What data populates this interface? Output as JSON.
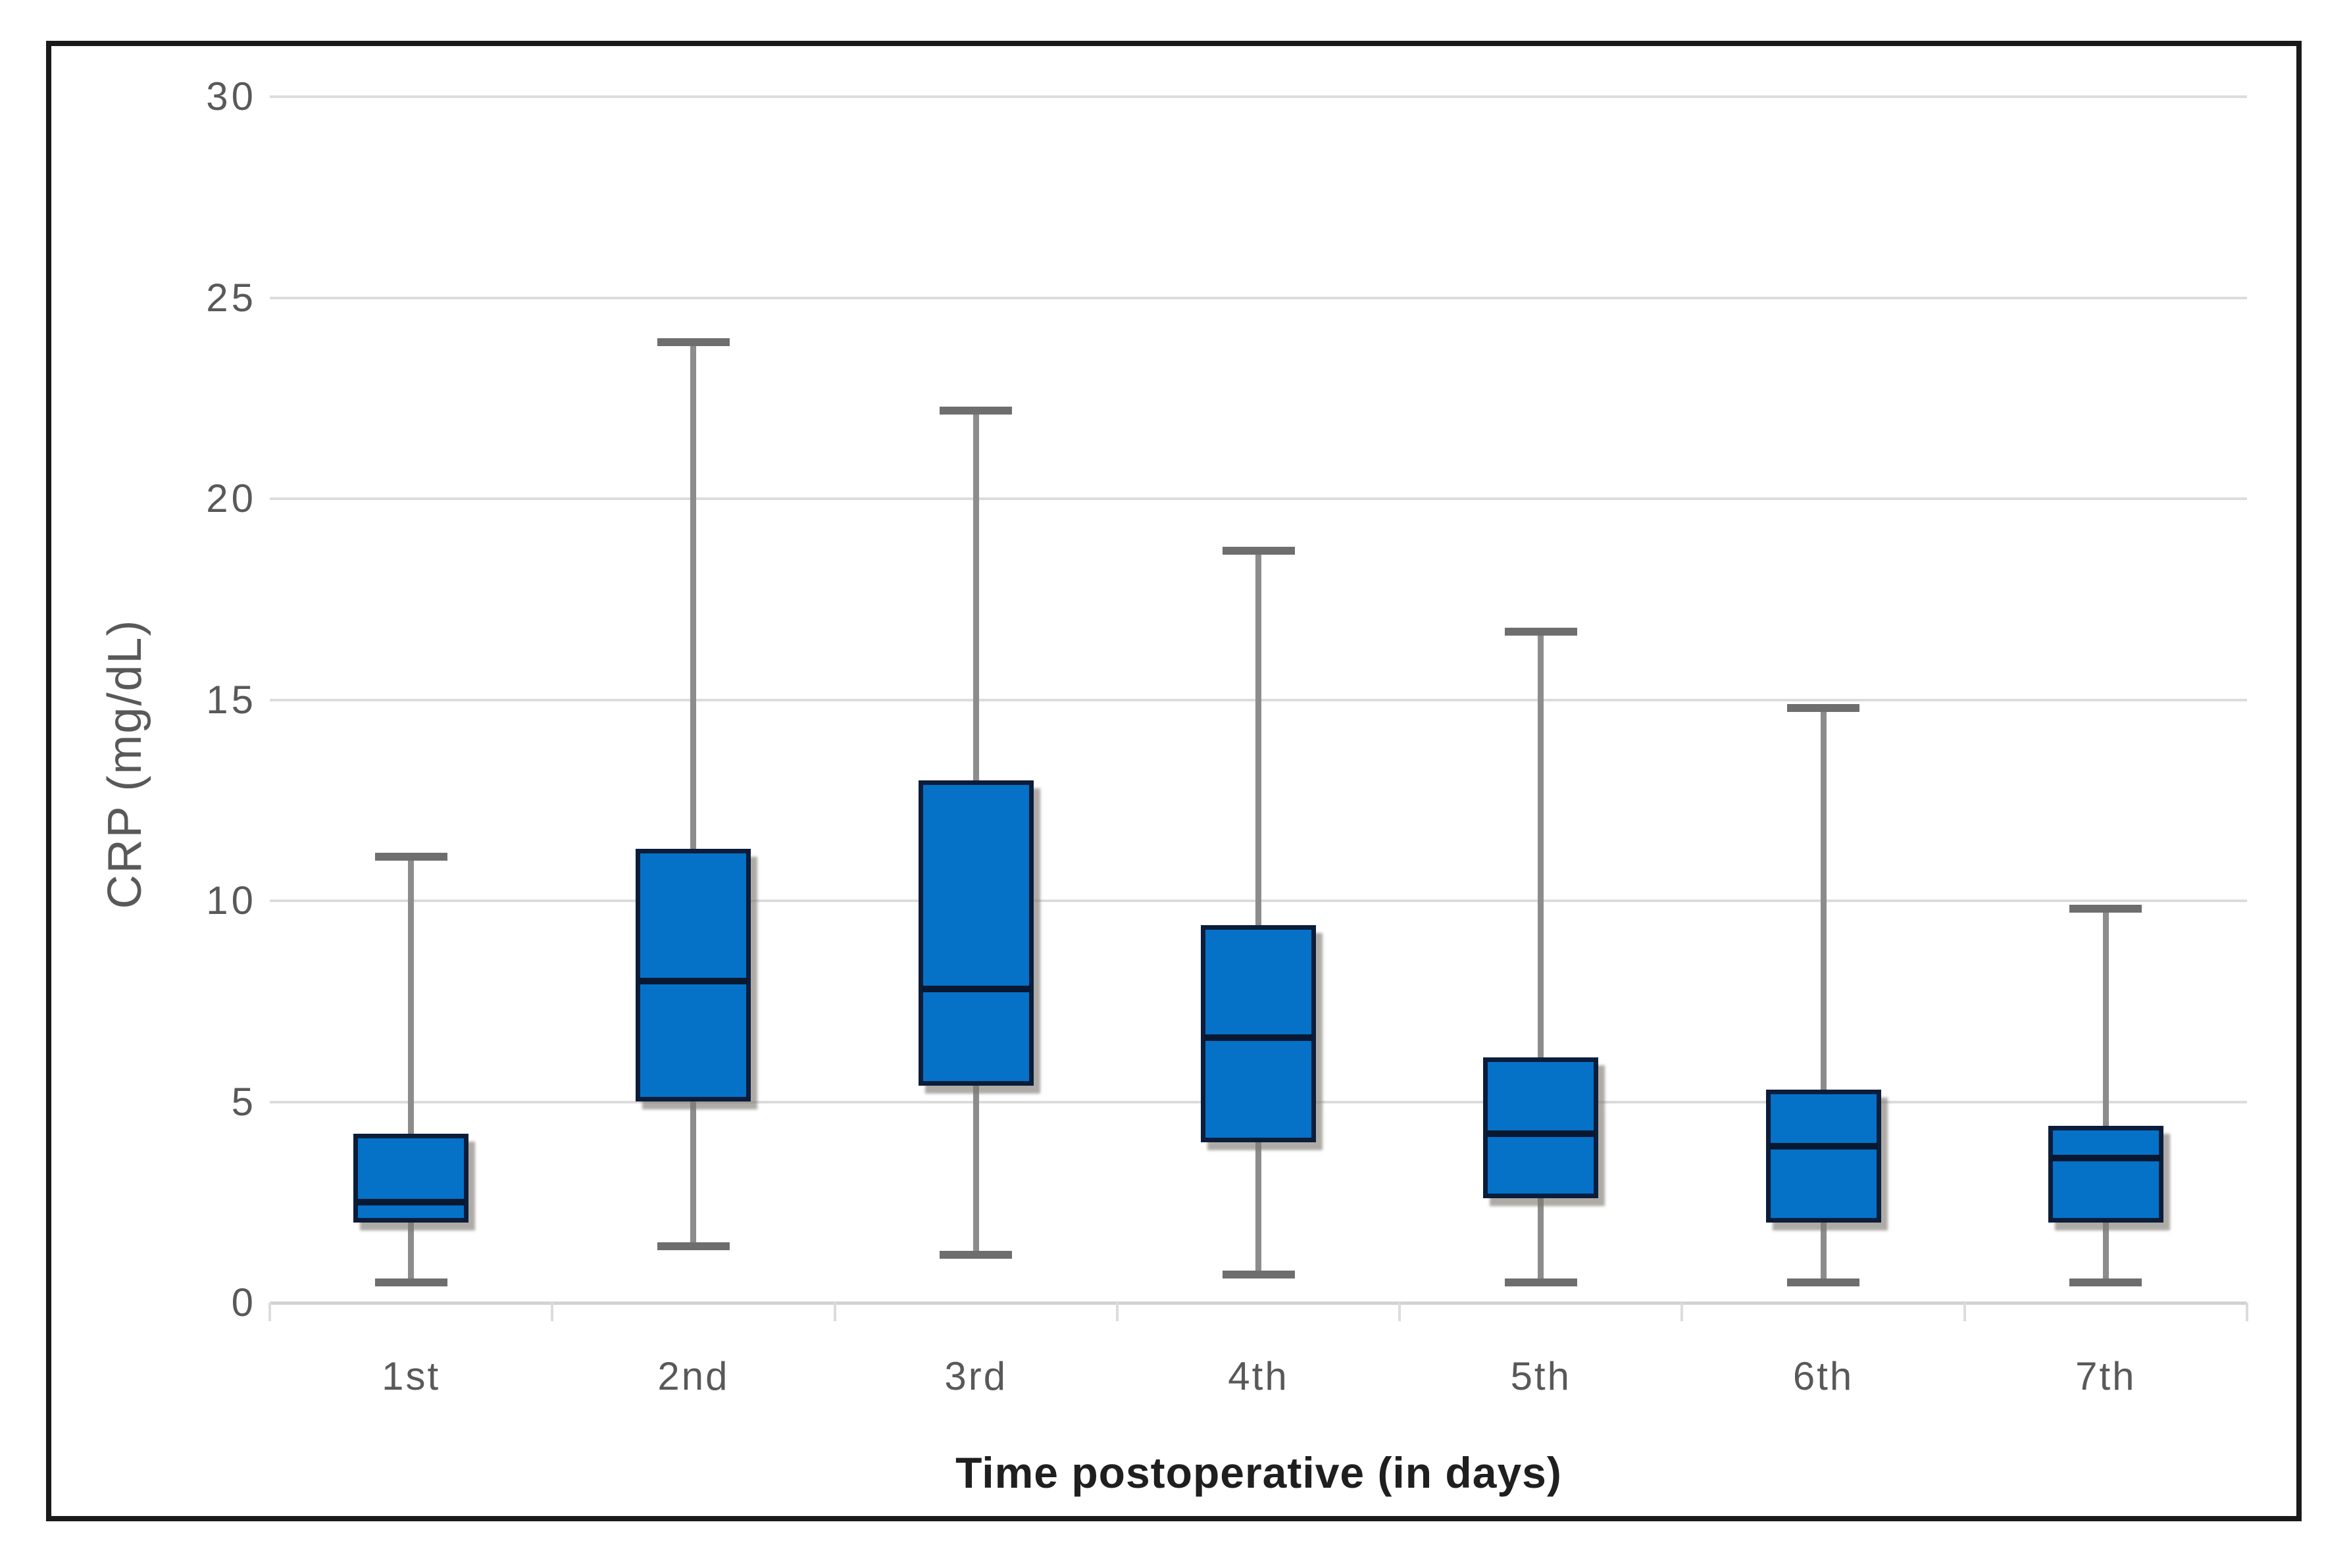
{
  "chart_data": {
    "type": "boxplot",
    "title": "",
    "xlabel": "Time postoperative (in days)",
    "ylabel": "CRP (mg/dL)",
    "categories": [
      "1st",
      "2nd",
      "3rd",
      "4th",
      "5th",
      "6th",
      "7th"
    ],
    "y_ticks": [
      "30",
      "25",
      "20",
      "15",
      "10",
      "5",
      "0"
    ],
    "y_tick_values": [
      30,
      25,
      20,
      15,
      10,
      5,
      0
    ],
    "ylim": [
      0,
      30
    ],
    "grid": "horizontal",
    "legend": "none",
    "series": [
      {
        "name": "CRP",
        "boxes": [
          {
            "category": "1st",
            "whisker_low": 0.5,
            "q1": 2.0,
            "median": 2.5,
            "q3": 4.2,
            "whisker_high": 11.1
          },
          {
            "category": "2nd",
            "whisker_low": 1.4,
            "q1": 5.0,
            "median": 8.0,
            "q3": 11.3,
            "whisker_high": 23.9
          },
          {
            "category": "3rd",
            "whisker_low": 1.2,
            "q1": 5.4,
            "median": 7.8,
            "q3": 13.0,
            "whisker_high": 22.2
          },
          {
            "category": "4th",
            "whisker_low": 0.7,
            "q1": 4.0,
            "median": 6.6,
            "q3": 9.4,
            "whisker_high": 18.7
          },
          {
            "category": "5th",
            "whisker_low": 0.5,
            "q1": 2.6,
            "median": 4.2,
            "q3": 6.1,
            "whisker_high": 16.7
          },
          {
            "category": "6th",
            "whisker_low": 0.5,
            "q1": 2.0,
            "median": 3.9,
            "q3": 5.3,
            "whisker_high": 14.8
          },
          {
            "category": "7th",
            "whisker_low": 0.5,
            "q1": 2.0,
            "median": 3.6,
            "q3": 4.4,
            "whisker_high": 9.8
          }
        ]
      }
    ],
    "colors": {
      "box_fill": "#0572c8",
      "box_border": "#0b1d3a",
      "median_line": "#081830",
      "whisker": "#8c8c8c",
      "whisker_cap": "#6e6e6e",
      "gridline": "#dcdcdc",
      "axis_line": "#d2d2d2",
      "tick_label": "#595959",
      "axis_title": "#595959",
      "x_title": "#1f1f1f",
      "figure_border": "#1a1a1a",
      "background": "#ffffff"
    }
  }
}
